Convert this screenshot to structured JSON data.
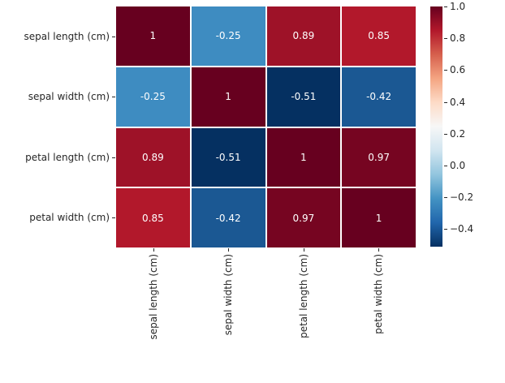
{
  "chart_data": {
    "type": "heatmap",
    "title": "",
    "x_categories": [
      "sepal length (cm)",
      "sepal width (cm)",
      "petal length (cm)",
      "petal width (cm)"
    ],
    "y_categories": [
      "sepal length (cm)",
      "sepal width (cm)",
      "petal length (cm)",
      "petal width (cm)"
    ],
    "matrix": [
      [
        1,
        -0.25,
        0.89,
        0.85
      ],
      [
        -0.25,
        1,
        -0.51,
        -0.42
      ],
      [
        0.89,
        -0.51,
        1,
        0.97
      ],
      [
        0.85,
        -0.42,
        0.97,
        1
      ]
    ],
    "cell_labels": [
      [
        "1",
        "-0.25",
        "0.89",
        "0.85"
      ],
      [
        "-0.25",
        "1",
        "-0.51",
        "-0.42"
      ],
      [
        "0.89",
        "-0.51",
        "1",
        "0.97"
      ],
      [
        "0.85",
        "-0.42",
        "0.97",
        "1"
      ]
    ],
    "cell_colors": [
      [
        "#67001f",
        "#3e8cc1",
        "#9e1228",
        "#b2182b"
      ],
      [
        "#3e8cc1",
        "#67001f",
        "#053061",
        "#1b5893"
      ],
      [
        "#9e1228",
        "#053061",
        "#67001f",
        "#760521"
      ],
      [
        "#b2182b",
        "#1b5893",
        "#760521",
        "#67001f"
      ]
    ],
    "colormap": "RdBu_r",
    "vmin": -0.51,
    "vmax": 1.0,
    "grid_on": false,
    "grid_line_color": "#ffffff",
    "annotation_text_color": "#ffffff",
    "tick_label_color": "#262626",
    "tick_mark_color": "#262626",
    "background_color": "#ffffff",
    "legend_position": "right-colorbar",
    "colorbar": {
      "tick_labels": [
        "1.0",
        "0.8",
        "0.6",
        "0.4",
        "0.2",
        "0.0",
        "−0.2",
        "−0.4"
      ],
      "tick_values": [
        1.0,
        0.8,
        0.6,
        0.4,
        0.2,
        0.0,
        -0.2,
        -0.4
      ],
      "gradient_stops": [
        "#053061",
        "#2166ac",
        "#4393c3",
        "#92c5de",
        "#d1e5f0",
        "#f7f7f7",
        "#fddbc7",
        "#f4a582",
        "#d6604d",
        "#b2182b",
        "#67001f"
      ]
    }
  }
}
